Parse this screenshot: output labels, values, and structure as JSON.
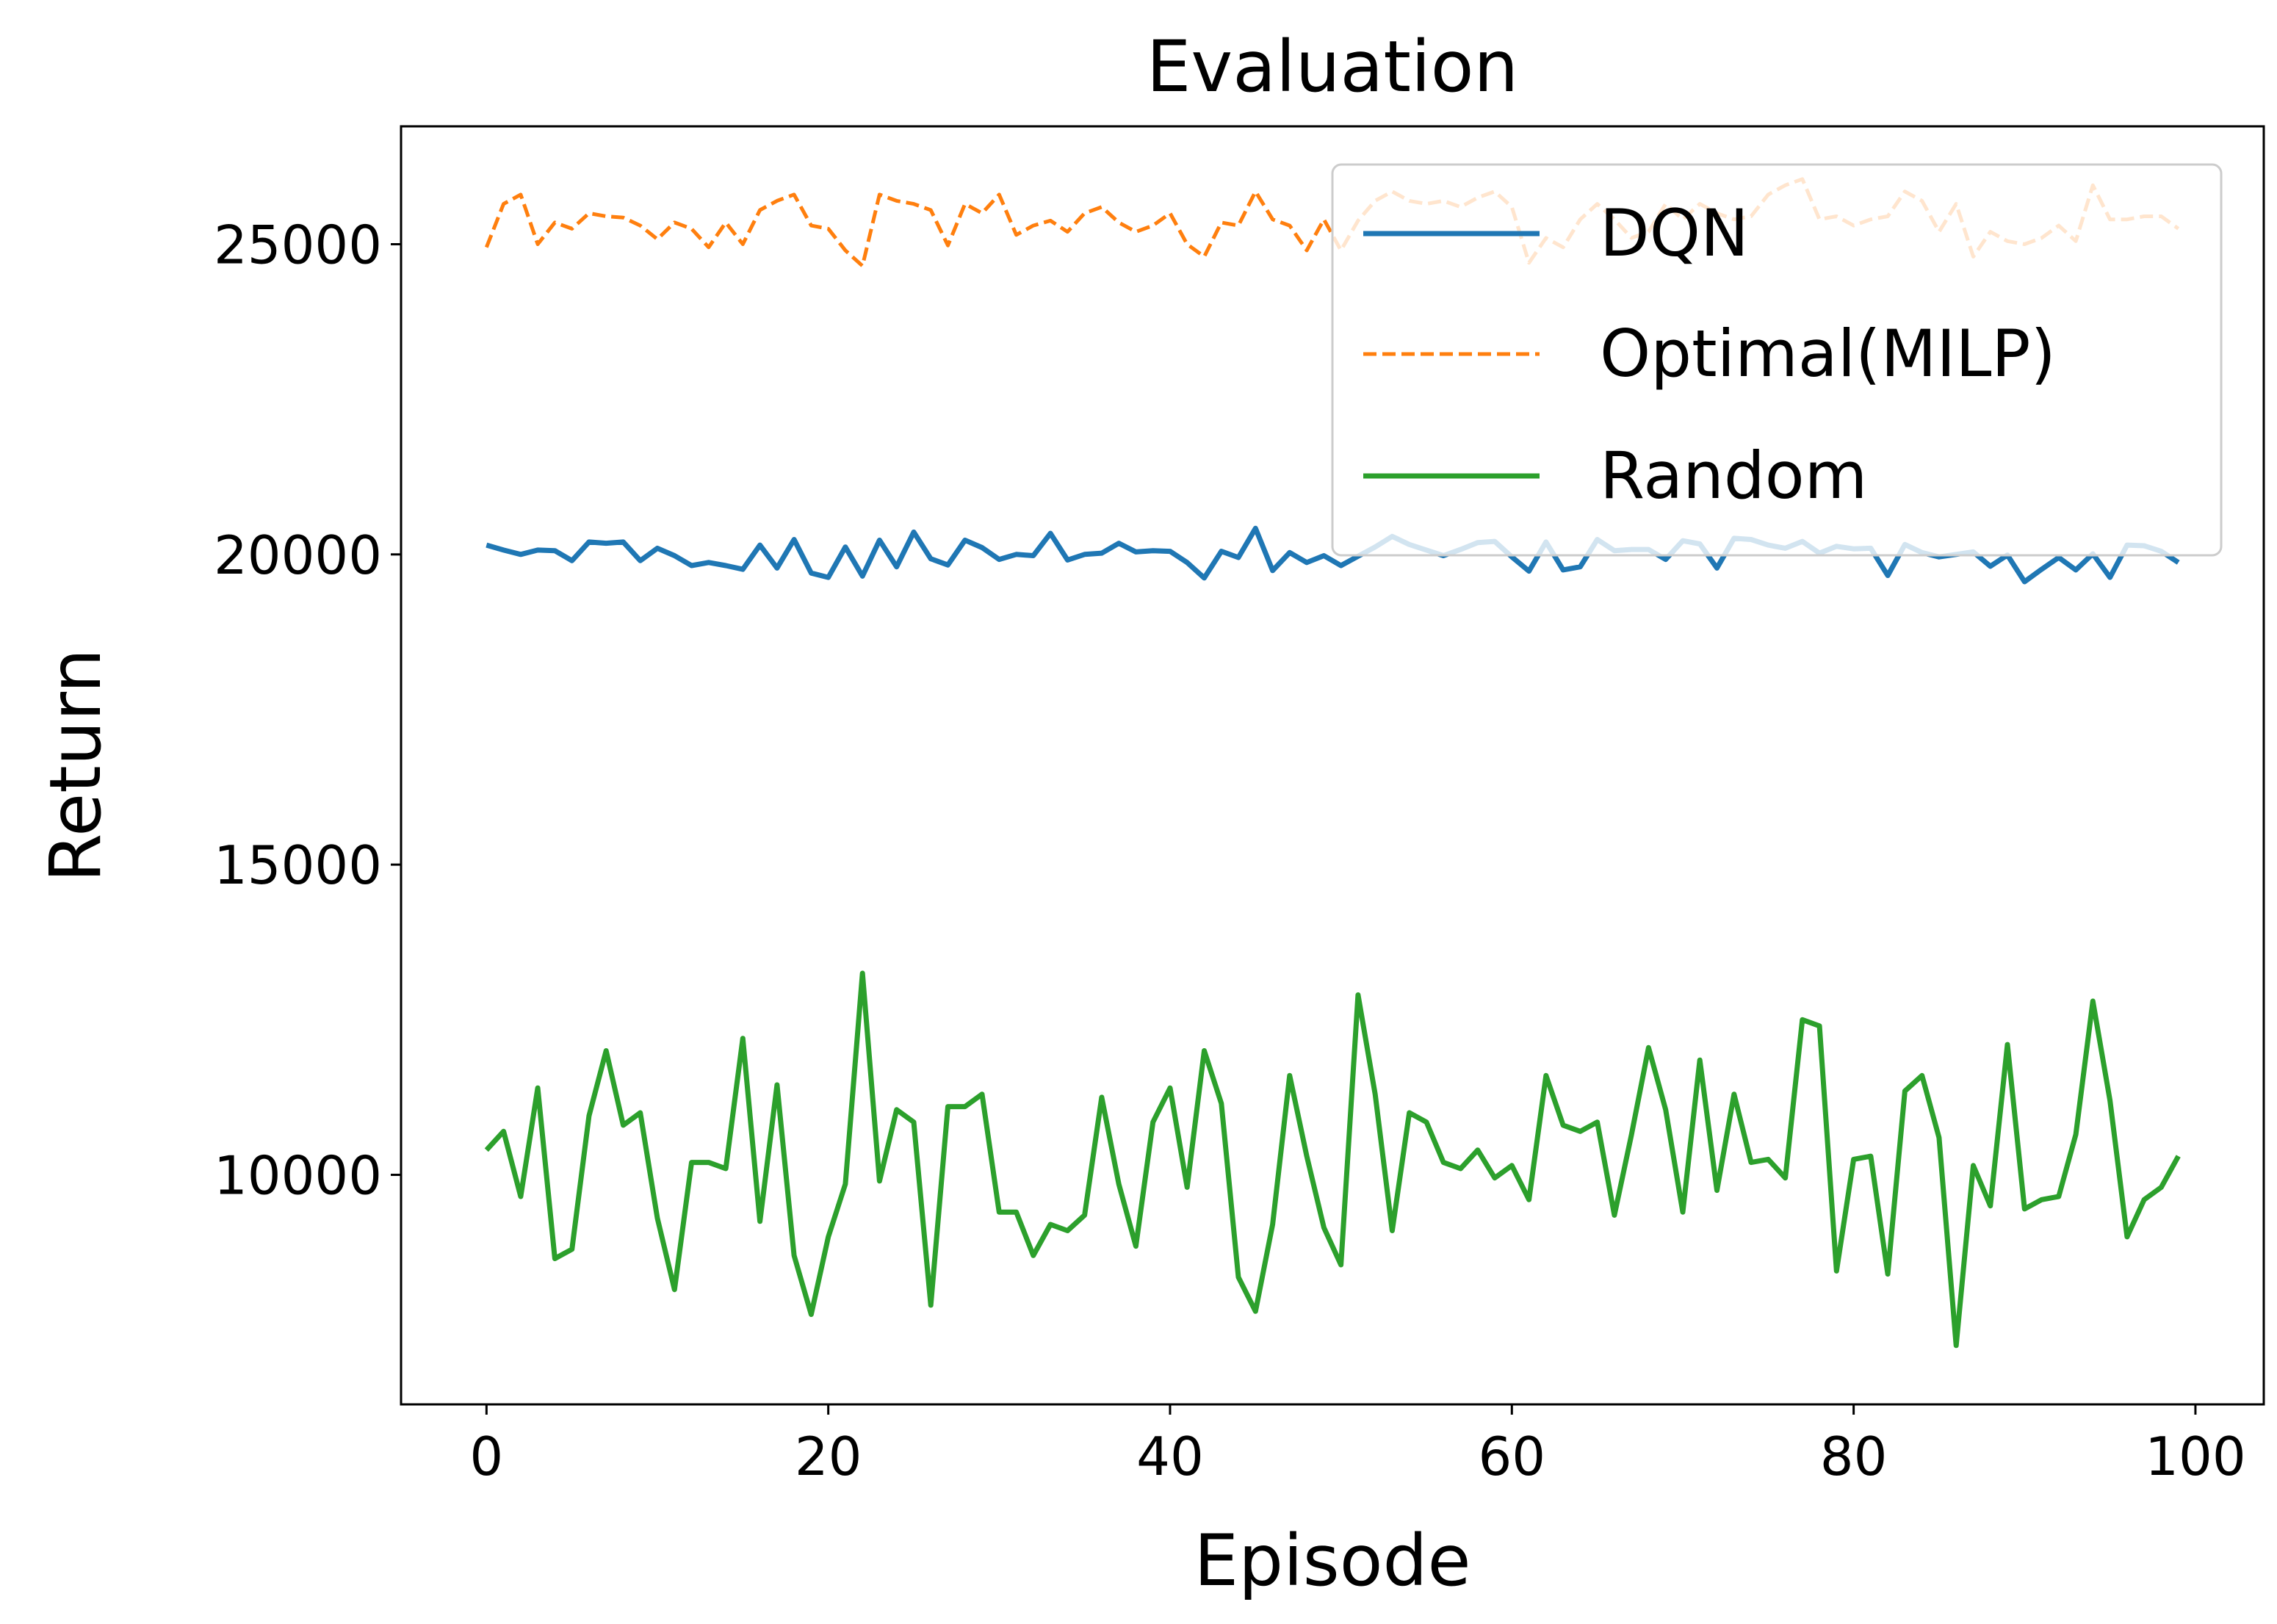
{
  "chart_data": {
    "type": "line",
    "title": "Evaluation",
    "xlabel": "Episode",
    "ylabel": "Return",
    "xlim": [
      -5,
      104
    ],
    "ylim": [
      6300,
      26900
    ],
    "xticks": [
      0,
      20,
      40,
      60,
      80,
      100
    ],
    "xtick_labels": [
      "0",
      "20",
      "40",
      "60",
      "80",
      "100"
    ],
    "yticks": [
      10000,
      15000,
      20000,
      25000
    ],
    "ytick_labels": [
      "10000",
      "15000",
      "20000",
      "25000"
    ],
    "grid": false,
    "legend_position": "top-right",
    "x": [
      0,
      1,
      2,
      3,
      4,
      5,
      6,
      7,
      8,
      9,
      10,
      11,
      12,
      13,
      14,
      15,
      16,
      17,
      18,
      19,
      20,
      21,
      22,
      23,
      24,
      25,
      26,
      27,
      28,
      29,
      30,
      31,
      32,
      33,
      34,
      35,
      36,
      37,
      38,
      39,
      40,
      41,
      42,
      43,
      44,
      45,
      46,
      47,
      48,
      49,
      50,
      51,
      52,
      53,
      54,
      55,
      56,
      57,
      58,
      59,
      60,
      61,
      62,
      63,
      64,
      65,
      66,
      67,
      68,
      69,
      70,
      71,
      72,
      73,
      74,
      75,
      76,
      77,
      78,
      79,
      80,
      81,
      82,
      83,
      84,
      85,
      86,
      87,
      88,
      89,
      90,
      91,
      92,
      93,
      94,
      95,
      96,
      97,
      98,
      99
    ],
    "series": [
      {
        "name": "DQN",
        "color": "#1f77b4",
        "dash": "solid",
        "values": [
          20150,
          20070,
          20000,
          20070,
          20060,
          19900,
          20200,
          20180,
          20200,
          19900,
          20100,
          19980,
          19820,
          19870,
          19820,
          19760,
          20150,
          19780,
          20240,
          19700,
          19630,
          20120,
          19650,
          20230,
          19800,
          20360,
          19930,
          19830,
          20230,
          20110,
          19920,
          20000,
          19980,
          20340,
          19910,
          20000,
          20020,
          20180,
          20040,
          20060,
          20050,
          19870,
          19620,
          20050,
          19950,
          20420,
          19740,
          20030,
          19870,
          19980,
          19820,
          19970,
          20120,
          20290,
          20160,
          20070,
          19980,
          20080,
          20190,
          20210,
          19960,
          19730,
          20200,
          19750,
          19800,
          20240,
          20060,
          20080,
          20080,
          19920,
          20220,
          20170,
          19780,
          20260,
          20240,
          20150,
          20100,
          20210,
          20020,
          20130,
          20090,
          20100,
          19660,
          20160,
          20030,
          19960,
          20000,
          20040,
          19810,
          19990,
          19560,
          19760,
          19950,
          19750,
          20010,
          19630,
          20150,
          20140,
          20050,
          19870
        ]
      },
      {
        "name": "Optimal(MILP)",
        "color": "#ff7f0e",
        "dash": "dashed",
        "values": [
          24950,
          25650,
          25800,
          25000,
          25350,
          25250,
          25500,
          25450,
          25430,
          25300,
          25080,
          25350,
          25250,
          24950,
          25350,
          25000,
          25550,
          25700,
          25800,
          25300,
          25250,
          24900,
          24650,
          25800,
          25700,
          25650,
          25550,
          24980,
          25650,
          25500,
          25800,
          25150,
          25300,
          25380,
          25200,
          25500,
          25600,
          25350,
          25200,
          25300,
          25500,
          25000,
          24800,
          25350,
          25300,
          25850,
          25400,
          25300,
          24900,
          25400,
          24900,
          25380,
          25700,
          25850,
          25700,
          25650,
          25700,
          25600,
          25750,
          25850,
          25600,
          24700,
          25100,
          24950,
          25400,
          25650,
          25400,
          25100,
          25200,
          25650,
          25400,
          25650,
          25500,
          25400,
          25450,
          25800,
          25950,
          26050,
          25400,
          25450,
          25300,
          25400,
          25450,
          25850,
          25700,
          25200,
          25650,
          24800,
          25200,
          25050,
          25000,
          25100,
          25300,
          25050,
          25950,
          25400,
          25400,
          25450,
          25450,
          25250
        ]
      },
      {
        "name": "Random",
        "color": "#2ca02c",
        "dash": "solid",
        "values": [
          10400,
          10700,
          9650,
          11400,
          8650,
          8800,
          10950,
          12000,
          10800,
          11000,
          9300,
          8150,
          10200,
          10200,
          10100,
          12200,
          9250,
          11450,
          8700,
          7750,
          9000,
          9850,
          13250,
          9900,
          11050,
          10850,
          7900,
          11100,
          11100,
          11300,
          9400,
          9400,
          8700,
          9200,
          9100,
          9350,
          11250,
          9850,
          8850,
          10850,
          11400,
          9800,
          12000,
          11150,
          8350,
          7800,
          9200,
          11600,
          10300,
          9150,
          8550,
          12900,
          11300,
          9100,
          11000,
          10850,
          10200,
          10100,
          10400,
          9950,
          10150,
          9600,
          11600,
          10800,
          10700,
          10850,
          9350,
          10650,
          12050,
          11050,
          9400,
          11850,
          9750,
          11300,
          10200,
          10250,
          9950,
          12500,
          12400,
          8450,
          10250,
          10300,
          8400,
          11350,
          11600,
          10600,
          7250,
          10150,
          9500,
          12100,
          9450,
          9600,
          9650,
          10650,
          12800,
          11200,
          9000,
          9600,
          9800,
          10300
        ]
      }
    ]
  }
}
